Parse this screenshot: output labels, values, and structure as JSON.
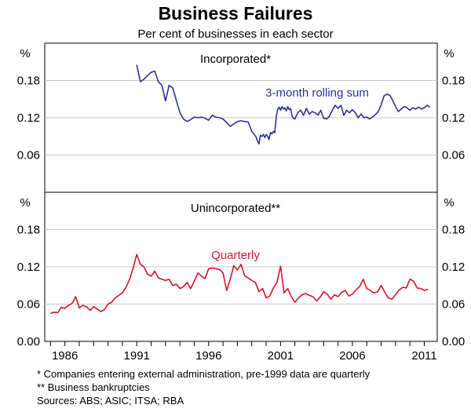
{
  "chart_data": {
    "type": "line",
    "title": "Business Failures",
    "subtitle": "Per cent of businesses in each sector",
    "x_ticks": [
      "1986",
      "1991",
      "1996",
      "2001",
      "2006",
      "2011"
    ],
    "xlim": [
      1984.6,
      2011.9
    ],
    "footnotes": [
      "*  Companies entering external administration, pre-1999 data are quarterly",
      "** Business bankruptcies",
      "Sources: ABS; ASIC; ITSA; RBA"
    ],
    "panels": [
      {
        "title": "Incorporated*",
        "unit": "%",
        "ylim": [
          0,
          0.24
        ],
        "y_ticks": [
          "0.18",
          "0.12",
          "0.06"
        ],
        "grid": true,
        "series": [
          {
            "name": "3-month rolling sum",
            "color": "#2e3192",
            "x": [
              1991.0,
              1991.25,
              1991.5,
              1991.75,
              1992.0,
              1992.25,
              1992.5,
              1992.75,
              1993.0,
              1993.25,
              1993.5,
              1993.75,
              1994.0,
              1994.25,
              1994.5,
              1994.75,
              1995.0,
              1995.25,
              1995.5,
              1995.75,
              1996.0,
              1996.25,
              1996.5,
              1996.75,
              1997.0,
              1997.25,
              1997.5,
              1997.75,
              1998.0,
              1998.25,
              1998.5,
              1998.75,
              1999.0,
              1999.1,
              1999.2,
              1999.3,
              1999.4,
              1999.5,
              1999.6,
              1999.7,
              1999.8,
              1999.9,
              2000.0,
              2000.1,
              2000.2,
              2000.3,
              2000.4,
              2000.5,
              2000.6,
              2000.7,
              2000.8,
              2000.9,
              2001.0,
              2001.1,
              2001.2,
              2001.3,
              2001.4,
              2001.5,
              2001.6,
              2001.7,
              2001.8,
              2001.9,
              2002.0,
              2002.2,
              2002.4,
              2002.6,
              2002.8,
              2003.0,
              2003.2,
              2003.4,
              2003.6,
              2003.8,
              2004.0,
              2004.2,
              2004.4,
              2004.6,
              2004.8,
              2005.0,
              2005.2,
              2005.4,
              2005.6,
              2005.8,
              2006.0,
              2006.2,
              2006.4,
              2006.6,
              2006.8,
              2007.0,
              2007.2,
              2007.4,
              2007.6,
              2007.8,
              2008.0,
              2008.2,
              2008.4,
              2008.6,
              2008.8,
              2009.0,
              2009.2,
              2009.4,
              2009.6,
              2009.8,
              2010.0,
              2010.2,
              2010.4,
              2010.6,
              2010.8,
              2011.0,
              2011.2,
              2011.4
            ],
            "y": [
              0.205,
              0.178,
              0.182,
              0.188,
              0.193,
              0.195,
              0.178,
              0.172,
              0.147,
              0.172,
              0.168,
              0.148,
              0.128,
              0.118,
              0.114,
              0.117,
              0.121,
              0.12,
              0.121,
              0.119,
              0.116,
              0.124,
              0.121,
              0.12,
              0.118,
              0.112,
              0.106,
              0.11,
              0.114,
              0.115,
              0.114,
              0.113,
              0.098,
              0.095,
              0.092,
              0.089,
              0.082,
              0.078,
              0.092,
              0.09,
              0.093,
              0.088,
              0.093,
              0.09,
              0.085,
              0.096,
              0.094,
              0.098,
              0.096,
              0.122,
              0.133,
              0.137,
              0.132,
              0.138,
              0.134,
              0.136,
              0.131,
              0.138,
              0.133,
              0.135,
              0.123,
              0.119,
              0.118,
              0.128,
              0.132,
              0.124,
              0.135,
              0.126,
              0.13,
              0.128,
              0.124,
              0.132,
              0.119,
              0.118,
              0.122,
              0.132,
              0.14,
              0.135,
              0.14,
              0.124,
              0.132,
              0.128,
              0.133,
              0.128,
              0.12,
              0.126,
              0.12,
              0.121,
              0.118,
              0.121,
              0.125,
              0.13,
              0.141,
              0.155,
              0.158,
              0.156,
              0.148,
              0.138,
              0.13,
              0.134,
              0.138,
              0.136,
              0.132,
              0.136,
              0.134,
              0.137,
              0.134,
              0.136,
              0.14,
              0.137
            ]
          }
        ]
      },
      {
        "title": "Unincorporated**",
        "unit": "%",
        "ylim": [
          0,
          0.24
        ],
        "y_ticks": [
          "0.18",
          "0.12",
          "0.06",
          "0.00"
        ],
        "grid": true,
        "series": [
          {
            "name": "Quarterly",
            "color": "#d0172a",
            "x": [
              1985.0,
              1985.25,
              1985.5,
              1985.75,
              1986.0,
              1986.25,
              1986.5,
              1986.75,
              1987.0,
              1987.25,
              1987.5,
              1987.75,
              1988.0,
              1988.25,
              1988.5,
              1988.75,
              1989.0,
              1989.25,
              1989.5,
              1989.75,
              1990.0,
              1990.25,
              1990.5,
              1990.75,
              1991.0,
              1991.25,
              1991.5,
              1991.75,
              1992.0,
              1992.25,
              1992.5,
              1992.75,
              1993.0,
              1993.25,
              1993.5,
              1993.75,
              1994.0,
              1994.25,
              1994.5,
              1994.75,
              1995.0,
              1995.25,
              1995.5,
              1995.75,
              1996.0,
              1996.25,
              1996.5,
              1996.75,
              1997.0,
              1997.25,
              1997.5,
              1997.75,
              1998.0,
              1998.25,
              1998.5,
              1998.75,
              1999.0,
              1999.25,
              1999.5,
              1999.75,
              2000.0,
              2000.25,
              2000.5,
              2000.75,
              2001.0,
              2001.25,
              2001.5,
              2001.75,
              2002.0,
              2002.25,
              2002.5,
              2002.75,
              2003.0,
              2003.25,
              2003.5,
              2003.75,
              2004.0,
              2004.25,
              2004.5,
              2004.75,
              2005.0,
              2005.25,
              2005.5,
              2005.75,
              2006.0,
              2006.25,
              2006.5,
              2006.75,
              2007.0,
              2007.25,
              2007.5,
              2007.75,
              2008.0,
              2008.25,
              2008.5,
              2008.75,
              2009.0,
              2009.25,
              2009.5,
              2009.75,
              2010.0,
              2010.25,
              2010.5,
              2010.75,
              2011.0,
              2011.25
            ],
            "y": [
              0.045,
              0.047,
              0.046,
              0.055,
              0.053,
              0.058,
              0.061,
              0.072,
              0.054,
              0.058,
              0.056,
              0.05,
              0.056,
              0.052,
              0.048,
              0.051,
              0.06,
              0.063,
              0.07,
              0.074,
              0.078,
              0.087,
              0.1,
              0.118,
              0.14,
              0.124,
              0.12,
              0.108,
              0.105,
              0.113,
              0.102,
              0.1,
              0.098,
              0.1,
              0.09,
              0.092,
              0.085,
              0.088,
              0.095,
              0.085,
              0.097,
              0.11,
              0.105,
              0.101,
              0.117,
              0.118,
              0.117,
              0.116,
              0.11,
              0.082,
              0.1,
              0.122,
              0.115,
              0.124,
              0.106,
              0.102,
              0.098,
              0.095,
              0.08,
              0.085,
              0.07,
              0.073,
              0.086,
              0.095,
              0.121,
              0.078,
              0.085,
              0.072,
              0.063,
              0.07,
              0.075,
              0.077,
              0.074,
              0.072,
              0.065,
              0.071,
              0.08,
              0.076,
              0.068,
              0.075,
              0.072,
              0.079,
              0.082,
              0.073,
              0.076,
              0.083,
              0.088,
              0.1,
              0.085,
              0.082,
              0.078,
              0.08,
              0.09,
              0.079,
              0.07,
              0.068,
              0.075,
              0.083,
              0.087,
              0.086,
              0.1,
              0.097,
              0.086,
              0.085,
              0.082,
              0.084
            ]
          }
        ]
      }
    ]
  }
}
